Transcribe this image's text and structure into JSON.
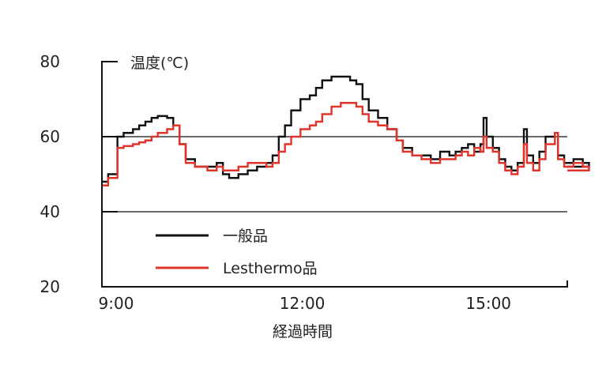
{
  "chart_data": {
    "type": "line",
    "ylabel": "温度(℃)",
    "xlabel": "経過時間",
    "ylim": [
      20,
      80
    ],
    "yticks": [
      "20",
      "40",
      "60",
      "80"
    ],
    "xlim": [
      9.0,
      16.5
    ],
    "xticks": [
      {
        "value": 9,
        "label": "9:00"
      },
      {
        "value": 12,
        "label": "12:00"
      },
      {
        "value": 15,
        "label": "15:00"
      }
    ],
    "grid_y": [
      40,
      60
    ],
    "legend_position": "lower-left",
    "series": [
      {
        "name": "一般品",
        "color": "#111111",
        "points": [
          [
            9.0,
            48
          ],
          [
            9.1,
            50
          ],
          [
            9.25,
            60
          ],
          [
            9.35,
            61
          ],
          [
            9.5,
            62
          ],
          [
            9.6,
            63
          ],
          [
            9.7,
            64
          ],
          [
            9.8,
            65
          ],
          [
            9.9,
            65.5
          ],
          [
            10.05,
            65
          ],
          [
            10.15,
            63
          ],
          [
            10.25,
            58
          ],
          [
            10.35,
            54
          ],
          [
            10.5,
            52
          ],
          [
            10.7,
            52
          ],
          [
            10.85,
            53
          ],
          [
            10.95,
            50
          ],
          [
            11.05,
            49
          ],
          [
            11.2,
            50
          ],
          [
            11.35,
            51
          ],
          [
            11.5,
            52
          ],
          [
            11.65,
            53
          ],
          [
            11.75,
            55
          ],
          [
            11.85,
            60
          ],
          [
            11.95,
            63
          ],
          [
            12.05,
            67
          ],
          [
            12.2,
            70
          ],
          [
            12.35,
            71
          ],
          [
            12.45,
            73
          ],
          [
            12.55,
            75
          ],
          [
            12.7,
            76
          ],
          [
            12.85,
            76
          ],
          [
            13.0,
            75
          ],
          [
            13.1,
            74
          ],
          [
            13.2,
            70
          ],
          [
            13.3,
            67
          ],
          [
            13.45,
            65
          ],
          [
            13.6,
            62
          ],
          [
            13.75,
            59
          ],
          [
            13.85,
            57
          ],
          [
            14.0,
            55
          ],
          [
            14.15,
            55
          ],
          [
            14.3,
            54
          ],
          [
            14.45,
            56
          ],
          [
            14.6,
            55
          ],
          [
            14.7,
            56
          ],
          [
            14.8,
            57
          ],
          [
            14.9,
            58
          ],
          [
            15.0,
            56
          ],
          [
            15.1,
            58
          ],
          [
            15.15,
            65
          ],
          [
            15.2,
            60
          ],
          [
            15.3,
            57
          ],
          [
            15.4,
            54
          ],
          [
            15.5,
            52
          ],
          [
            15.6,
            51
          ],
          [
            15.7,
            53
          ],
          [
            15.8,
            62
          ],
          [
            15.85,
            55
          ],
          [
            15.95,
            53
          ],
          [
            16.05,
            56
          ],
          [
            16.15,
            60
          ],
          [
            16.3,
            61
          ],
          [
            16.35,
            55
          ],
          [
            16.45,
            53
          ],
          [
            16.6,
            54
          ],
          [
            16.75,
            53
          ],
          [
            16.85,
            52
          ]
        ]
      },
      {
        "name": "Lesthermo品",
        "color": "#e0342a",
        "points": [
          [
            9.0,
            47
          ],
          [
            9.1,
            49
          ],
          [
            9.25,
            57
          ],
          [
            9.35,
            57.5
          ],
          [
            9.5,
            58
          ],
          [
            9.6,
            58.5
          ],
          [
            9.7,
            59
          ],
          [
            9.8,
            60
          ],
          [
            9.9,
            61
          ],
          [
            10.05,
            62
          ],
          [
            10.15,
            63
          ],
          [
            10.25,
            58
          ],
          [
            10.35,
            53
          ],
          [
            10.5,
            52
          ],
          [
            10.7,
            51
          ],
          [
            10.85,
            52
          ],
          [
            10.95,
            51
          ],
          [
            11.05,
            51
          ],
          [
            11.2,
            52
          ],
          [
            11.35,
            53
          ],
          [
            11.5,
            53
          ],
          [
            11.65,
            52
          ],
          [
            11.75,
            53
          ],
          [
            11.85,
            56
          ],
          [
            11.95,
            58
          ],
          [
            12.05,
            60
          ],
          [
            12.2,
            62
          ],
          [
            12.35,
            63
          ],
          [
            12.45,
            64
          ],
          [
            12.55,
            66
          ],
          [
            12.7,
            68
          ],
          [
            12.85,
            69
          ],
          [
            13.0,
            69
          ],
          [
            13.1,
            68
          ],
          [
            13.2,
            66
          ],
          [
            13.3,
            64
          ],
          [
            13.45,
            63
          ],
          [
            13.6,
            62
          ],
          [
            13.75,
            59
          ],
          [
            13.85,
            56
          ],
          [
            14.0,
            55
          ],
          [
            14.15,
            54
          ],
          [
            14.3,
            53
          ],
          [
            14.45,
            54
          ],
          [
            14.6,
            54
          ],
          [
            14.7,
            55
          ],
          [
            14.8,
            56
          ],
          [
            14.9,
            55
          ],
          [
            15.0,
            57
          ],
          [
            15.1,
            56
          ],
          [
            15.15,
            60
          ],
          [
            15.2,
            57
          ],
          [
            15.3,
            56
          ],
          [
            15.4,
            53
          ],
          [
            15.5,
            51
          ],
          [
            15.6,
            50
          ],
          [
            15.7,
            52
          ],
          [
            15.8,
            58
          ],
          [
            15.85,
            53
          ],
          [
            15.95,
            51
          ],
          [
            16.05,
            54
          ],
          [
            16.15,
            58
          ],
          [
            16.3,
            61
          ],
          [
            16.35,
            54
          ],
          [
            16.45,
            52
          ],
          [
            16.6,
            53
          ],
          [
            16.75,
            52
          ],
          [
            16.85,
            51
          ]
        ]
      }
    ]
  }
}
